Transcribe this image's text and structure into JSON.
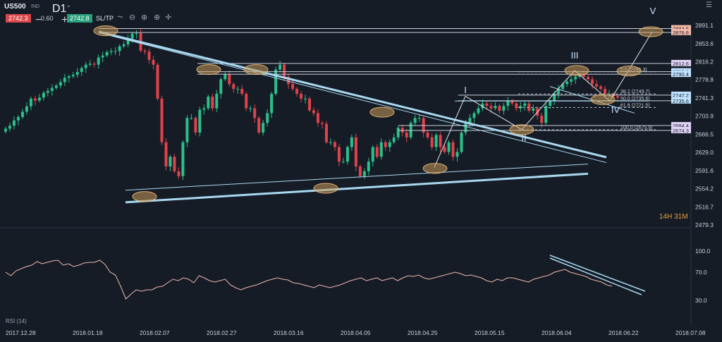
{
  "header": {
    "symbol": "US500",
    "market": "IND",
    "timeframe": "D1",
    "bid": "2742.3",
    "change": "0.60",
    "ask": "2742.8",
    "sltp_label": "SL/TP",
    "timer": "14H 31M",
    "rsi_label": "RSI (14)"
  },
  "icons": [
    "chart-type-icon",
    "zoom-out-icon",
    "zoom-in-icon",
    "crosshair-icon",
    "settings-menu-icon"
  ],
  "colors": {
    "background": "#151c26",
    "bull": "#2bbf8a",
    "bear": "#e0424b",
    "trendline": "#a9d8f0",
    "ellipse": "#c99a5a",
    "rsi": "#f0b6b0"
  },
  "chart_data": [
    {
      "type": "candlestick",
      "y_ticks": [
        "2891.1",
        "2853.6",
        "2816.2",
        "2778.8",
        "2741.3",
        "2703.9",
        "2666.5",
        "2629.0",
        "2591.6",
        "2554.2",
        "2516.7",
        "2479.3"
      ],
      "x_ticks": [
        "2017.12.28",
        "2018.01.18",
        "2018.02.07",
        "2018.02.27",
        "2018.03.16",
        "2018.04.05",
        "2018.04.25",
        "2018.05.15",
        "2018.06.04",
        "2018.06.22",
        "2018.07.08"
      ],
      "ylim": [
        2479.3,
        2891.1
      ],
      "price_labels": [
        "2884.5",
        "2876.6",
        "2812.6",
        "2795.6",
        "2790.4",
        "2747.2",
        "2735.6",
        "2684.4",
        "2674.3"
      ],
      "fib_labels": [
        "0.0 (2795.3)",
        "38.2 (2749.7)",
        "50.0 (2735.6)",
        "61.8 (2721.5)",
        "100.0 (2675.9)"
      ],
      "waves": [
        "I",
        "II",
        "III",
        "IV",
        "V"
      ],
      "closes": [
        2678,
        2684,
        2695,
        2702,
        2713,
        2724,
        2740,
        2736,
        2742,
        2752,
        2756,
        2762,
        2767,
        2774,
        2783,
        2786,
        2789,
        2795,
        2803,
        2810,
        2812,
        2810,
        2825,
        2829,
        2836,
        2838,
        2838,
        2848,
        2852,
        2864,
        2874,
        2875,
        2839,
        2837,
        2820,
        2810,
        2740,
        2650,
        2600,
        2620,
        2590,
        2580,
        2650,
        2700,
        2700,
        2670,
        2717,
        2720,
        2744,
        2720,
        2750,
        2780,
        2790,
        2770,
        2760,
        2760,
        2750,
        2720,
        2720,
        2700,
        2670,
        2690,
        2710,
        2750,
        2800,
        2810,
        2785,
        2770,
        2760,
        2750,
        2740,
        2740,
        2716,
        2710,
        2690,
        2688,
        2650,
        2650,
        2640,
        2610,
        2610,
        2640,
        2660,
        2600,
        2580,
        2590,
        2610,
        2640,
        2620,
        2650,
        2640,
        2650,
        2660,
        2680,
        2670,
        2660,
        2690,
        2700,
        2700,
        2670,
        2660,
        2640,
        2665,
        2640,
        2630,
        2650,
        2620,
        2630,
        2670,
        2690,
        2700,
        2710,
        2720,
        2730,
        2725,
        2720,
        2725,
        2715,
        2725,
        2735,
        2730,
        2720,
        2725,
        2730,
        2715,
        2720,
        2705,
        2690,
        2725,
        2735,
        2750,
        2760,
        2770,
        2775,
        2780,
        2785,
        2790,
        2785,
        2780,
        2770,
        2765,
        2760,
        2750,
        2750,
        2745,
        2742
      ],
      "series": [
        {
          "name": "RSI (14)",
          "ylim": [
            0,
            100
          ],
          "ticks": [
            "100.0",
            "70.0",
            "30.0"
          ],
          "values": [
            70,
            65,
            72,
            75,
            78,
            80,
            85,
            82,
            84,
            86,
            87,
            80,
            82,
            78,
            80,
            83,
            84,
            84,
            87,
            81,
            70,
            66,
            50,
            32,
            39,
            45,
            43,
            45,
            45,
            49,
            50,
            55,
            60,
            58,
            62,
            60,
            55,
            65,
            62,
            58,
            56,
            58,
            60,
            52,
            48,
            45,
            48,
            50,
            52,
            55,
            58,
            60,
            62,
            60,
            59,
            55,
            54,
            52,
            50,
            48,
            52,
            50,
            48,
            50,
            52,
            55,
            58,
            60,
            62,
            58,
            60,
            62,
            58,
            60,
            62,
            58,
            62,
            65,
            64,
            66,
            62,
            60,
            62,
            64,
            66,
            68,
            70,
            68,
            65,
            66,
            64,
            62,
            58,
            56,
            60,
            58,
            62,
            62,
            60,
            58,
            56,
            60,
            62,
            64,
            66,
            70,
            72,
            74,
            70,
            68,
            66,
            64,
            60,
            58,
            56,
            52,
            50
          ]
        }
      ],
      "annotations": {
        "ellipses": 14,
        "trendlines": 6
      }
    }
  ]
}
